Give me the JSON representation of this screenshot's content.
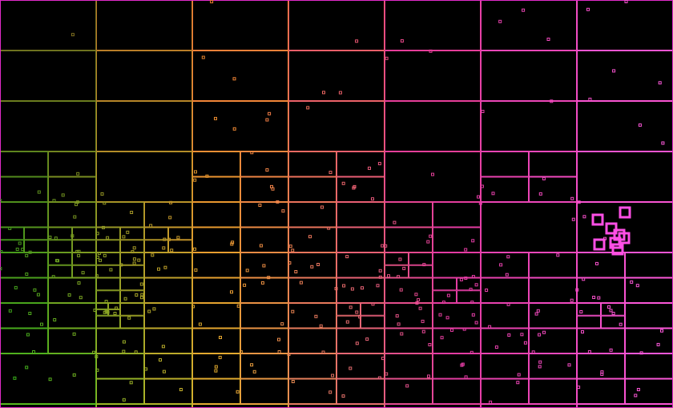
{
  "diagram": {
    "type": "quadtree-point-visualization",
    "background": "#000000",
    "color_scale": [
      "#2e9e1a",
      "#e8a030",
      "#e23aa0",
      "#ff5be0"
    ],
    "highlight_color": "#ff4fe6"
  }
}
